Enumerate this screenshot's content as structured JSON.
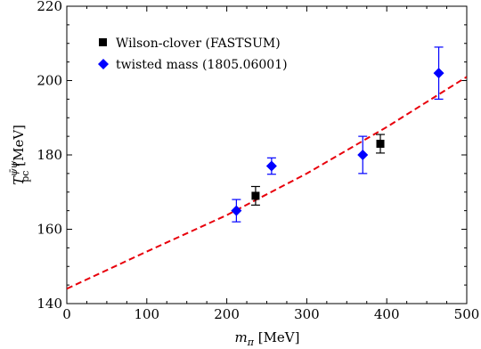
{
  "chart_data": {
    "type": "scatter",
    "xlabel": "m",
    "xlabel_sub": "π",
    "xlabel_unit": " [MeV]",
    "ylabel_main": "T",
    "ylabel_sup": "ψ̄ψ",
    "ylabel_sub": "pc",
    "ylabel_unit": " [MeV]",
    "xlim": [
      0,
      500
    ],
    "ylim": [
      140,
      220
    ],
    "xticks": [
      0,
      100,
      200,
      300,
      400,
      500
    ],
    "yticks": [
      140,
      160,
      180,
      200,
      220
    ],
    "legend_position": "top-left",
    "series": [
      {
        "name": "Wilson-clover (FASTSUM)",
        "marker": "square",
        "color": "#000000",
        "points": [
          {
            "x": 236,
            "y": 169,
            "err": 2.5
          },
          {
            "x": 392,
            "y": 183,
            "err": 2.5
          }
        ]
      },
      {
        "name": "twisted mass (1805.06001)",
        "marker": "diamond",
        "color": "#0000ff",
        "points": [
          {
            "x": 212,
            "y": 165,
            "err": 3
          },
          {
            "x": 256,
            "y": 177,
            "err": 2.2
          },
          {
            "x": 370,
            "y": 180,
            "err": 5
          },
          {
            "x": 465,
            "y": 202,
            "err": 7
          }
        ]
      }
    ],
    "fit_curve": {
      "color": "#e8000b",
      "style": "dashed",
      "points": [
        [
          0,
          144
        ],
        [
          100,
          154
        ],
        [
          200,
          163.8
        ],
        [
          300,
          175
        ],
        [
          400,
          187.5
        ],
        [
          500,
          201
        ]
      ]
    }
  }
}
